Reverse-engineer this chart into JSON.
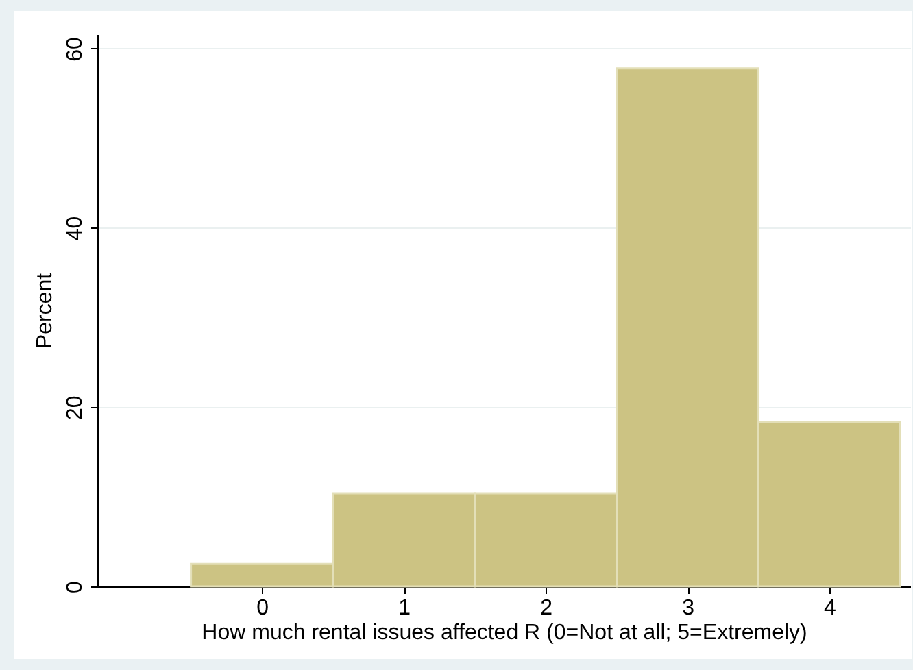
{
  "chart_data": {
    "type": "histogram",
    "xlabel": "How much rental issues affected R (0=Not at all; 5=Extremely)",
    "ylabel": "Percent",
    "bins": [
      -0.5,
      0.5,
      1.5,
      2.5,
      3.5,
      4.5
    ],
    "values": [
      2.5,
      10.4,
      10.4,
      57.8,
      18.3
    ],
    "color": "#ccc383",
    "xlim": [
      -1.16,
      4.57
    ],
    "xticks": [
      0,
      1,
      2,
      3,
      4
    ],
    "ylim": [
      0,
      61.6
    ],
    "yticks": [
      0,
      20,
      40,
      60
    ],
    "grid": "y"
  }
}
